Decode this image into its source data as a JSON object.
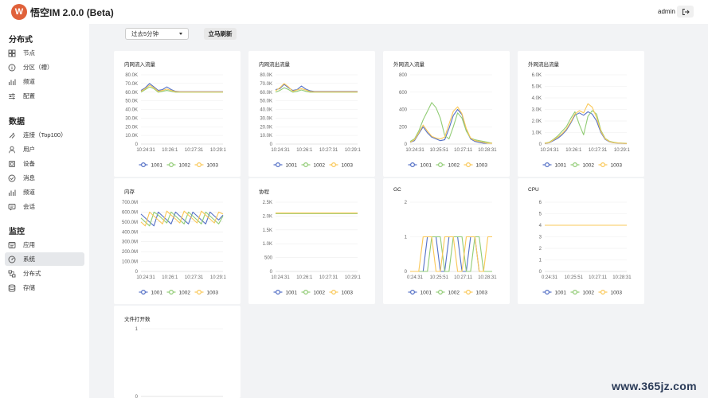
{
  "header": {
    "logo_text": "W",
    "title": "悟空IM 2.0.0 (Beta)",
    "user": "admin",
    "logout_icon": "logout-icon"
  },
  "sidebar": {
    "sections": [
      {
        "title": "分布式",
        "items": [
          {
            "label": "节点",
            "icon": "grid-icon"
          },
          {
            "label": "分区（槽）",
            "icon": "info-circle-icon"
          },
          {
            "label": "频道",
            "icon": "bar-chart-icon"
          },
          {
            "label": "配置",
            "icon": "sliders-icon"
          }
        ]
      },
      {
        "title": "数据",
        "items": [
          {
            "label": "连接（Top100）",
            "icon": "plug-icon"
          },
          {
            "label": "用户",
            "icon": "user-icon"
          },
          {
            "label": "设备",
            "icon": "device-icon"
          },
          {
            "label": "消息",
            "icon": "check-circle-icon"
          },
          {
            "label": "频道",
            "icon": "bar-chart-icon"
          },
          {
            "label": "会话",
            "icon": "chat-icon"
          }
        ]
      },
      {
        "title": "监控",
        "items": [
          {
            "label": "应用",
            "icon": "app-icon"
          },
          {
            "label": "系统",
            "icon": "gauge-icon",
            "active": true
          },
          {
            "label": "分布式",
            "icon": "cluster-icon"
          },
          {
            "label": "存储",
            "icon": "database-icon"
          }
        ]
      }
    ]
  },
  "toolbar": {
    "range_value": "过去5分钟",
    "refresh_label": "立马刷新"
  },
  "colors": {
    "series": [
      "#5470c6",
      "#91cc75",
      "#fac858"
    ]
  },
  "charts": [
    {
      "id": "c1",
      "type": "line",
      "title": "内网流入流量",
      "yticks": [
        "0",
        "10.0K",
        "20.0K",
        "30.0K",
        "40.0K",
        "50.0K",
        "60.0K",
        "70.0K",
        "80.0K"
      ],
      "ylim": [
        0,
        80000
      ],
      "xticks": [
        "10:24:31",
        "10:26:1",
        "10:27:31",
        "10:29:1"
      ],
      "series": [
        {
          "name": "1001",
          "values": [
            62000,
            65000,
            70000,
            66000,
            62000,
            63000,
            66000,
            63000,
            61000,
            60500,
            60500,
            60500,
            60500,
            60500,
            60500,
            60500,
            60500,
            60500,
            60500,
            60500
          ]
        },
        {
          "name": "1002",
          "values": [
            60000,
            63000,
            66000,
            64000,
            60000,
            61000,
            62000,
            61000,
            60000,
            60000,
            60000,
            60000,
            60000,
            60000,
            60000,
            60000,
            60000,
            60000,
            60000,
            60000
          ]
        },
        {
          "name": "1003",
          "values": [
            61000,
            64000,
            68000,
            65000,
            61000,
            62000,
            63500,
            62000,
            60500,
            60200,
            60200,
            60200,
            60200,
            60200,
            60200,
            60200,
            60200,
            60200,
            60200,
            60200
          ]
        }
      ]
    },
    {
      "id": "c2",
      "type": "line",
      "title": "内网流出流量",
      "yticks": [
        "0",
        "10.0K",
        "20.0K",
        "30.0K",
        "40.0K",
        "50.0K",
        "60.0K",
        "70.0K",
        "80.0K"
      ],
      "ylim": [
        0,
        80000
      ],
      "xticks": [
        "10:24:31",
        "10:26:1",
        "10:27:31",
        "10:29:1"
      ],
      "series": [
        {
          "name": "1001",
          "values": [
            63000,
            64000,
            69000,
            65000,
            62000,
            63000,
            67000,
            63500,
            61500,
            60800,
            60800,
            60800,
            60800,
            60800,
            60800,
            60800,
            60800,
            60800,
            60800,
            60800
          ]
        },
        {
          "name": "1002",
          "values": [
            60000,
            62000,
            65000,
            63000,
            60000,
            61000,
            62500,
            61000,
            60000,
            60000,
            60000,
            60000,
            60000,
            60000,
            60000,
            60000,
            60000,
            60000,
            60000,
            60000
          ]
        },
        {
          "name": "1003",
          "values": [
            61500,
            65000,
            70000,
            66000,
            61000,
            62500,
            64000,
            62500,
            60600,
            60300,
            60300,
            60300,
            60300,
            60300,
            60300,
            60300,
            60300,
            60300,
            60300,
            60300
          ]
        }
      ]
    },
    {
      "id": "c3",
      "type": "line",
      "title": "外网流入流量",
      "yticks": [
        "0",
        "200",
        "400",
        "600",
        "800"
      ],
      "ylim": [
        0,
        800
      ],
      "xticks": [
        "10:24:31",
        "10:25:51",
        "10:27:11",
        "10:28:31"
      ],
      "series": [
        {
          "name": "1001",
          "values": [
            20,
            40,
            120,
            200,
            130,
            80,
            60,
            40,
            50,
            180,
            330,
            400,
            340,
            160,
            60,
            30,
            20,
            10,
            10,
            10
          ]
        },
        {
          "name": "1002",
          "values": [
            30,
            60,
            150,
            280,
            380,
            480,
            420,
            300,
            100,
            60,
            200,
            360,
            300,
            150,
            70,
            50,
            40,
            30,
            20,
            10
          ]
        },
        {
          "name": "1003",
          "values": [
            20,
            50,
            130,
            220,
            150,
            90,
            70,
            60,
            80,
            230,
            380,
            430,
            350,
            180,
            70,
            40,
            30,
            20,
            10,
            10
          ]
        }
      ]
    },
    {
      "id": "c4",
      "type": "line",
      "title": "外网流出流量",
      "yticks": [
        "0",
        "1.0K",
        "2.0K",
        "3.0K",
        "4.0K",
        "5.0K",
        "6.0K"
      ],
      "ylim": [
        0,
        6000
      ],
      "xticks": [
        "10:24:31",
        "10:26:1",
        "10:27:31",
        "10:29:1"
      ],
      "series": [
        {
          "name": "1001",
          "values": [
            50,
            100,
            300,
            500,
            800,
            1200,
            1800,
            2500,
            2700,
            2500,
            2800,
            2600,
            2000,
            1000,
            400,
            200,
            100,
            80,
            60,
            50
          ]
        },
        {
          "name": "1002",
          "values": [
            80,
            150,
            400,
            700,
            1100,
            1500,
            2200,
            2800,
            1700,
            800,
            2400,
            2900,
            2600,
            1200,
            500,
            250,
            150,
            100,
            80,
            60
          ]
        },
        {
          "name": "1003",
          "values": [
            60,
            120,
            350,
            600,
            900,
            1300,
            1900,
            2600,
            2900,
            2700,
            3500,
            3200,
            2300,
            1100,
            450,
            220,
            120,
            90,
            70,
            50
          ]
        }
      ]
    },
    {
      "id": "c5",
      "type": "line",
      "title": "内存",
      "yticks": [
        "0",
        "100.0M",
        "200.0M",
        "300.0M",
        "400.0M",
        "500.0M",
        "600.0M",
        "700.0M"
      ],
      "ylim": [
        0,
        700
      ],
      "xticks": [
        "10:24:31",
        "10:26:1",
        "10:27:31",
        "10:29:1"
      ],
      "series": [
        {
          "name": "1001",
          "values": [
            580,
            540,
            500,
            460,
            600,
            560,
            520,
            480,
            600,
            560,
            520,
            480,
            600,
            560,
            520,
            480,
            600,
            560,
            520,
            570
          ]
        },
        {
          "name": "1002",
          "values": [
            540,
            500,
            460,
            600,
            570,
            530,
            490,
            600,
            560,
            520,
            480,
            600,
            560,
            520,
            480,
            600,
            560,
            520,
            480,
            560
          ]
        },
        {
          "name": "1003",
          "values": [
            500,
            460,
            600,
            560,
            520,
            480,
            610,
            570,
            530,
            490,
            610,
            570,
            530,
            490,
            610,
            570,
            530,
            490,
            600,
            580
          ]
        }
      ]
    },
    {
      "id": "c6",
      "type": "line",
      "title": "协程",
      "yticks": [
        "0",
        "500",
        "1.0K",
        "1.5K",
        "2.0K",
        "2.5K"
      ],
      "ylim": [
        0,
        2500
      ],
      "xticks": [
        "10:24:31",
        "10:26:1",
        "10:27:31",
        "10:29:1"
      ],
      "series": [
        {
          "name": "1001",
          "values": [
            2100,
            2100,
            2100,
            2100,
            2100,
            2100,
            2100,
            2100,
            2100,
            2100,
            2100,
            2100,
            2100,
            2100,
            2100,
            2100,
            2100,
            2100,
            2100,
            2100
          ]
        },
        {
          "name": "1002",
          "values": [
            2090,
            2090,
            2090,
            2090,
            2090,
            2090,
            2090,
            2090,
            2090,
            2090,
            2090,
            2090,
            2090,
            2090,
            2090,
            2090,
            2090,
            2090,
            2090,
            2090
          ]
        },
        {
          "name": "1003",
          "values": [
            2110,
            2110,
            2110,
            2110,
            2110,
            2110,
            2110,
            2110,
            2110,
            2110,
            2110,
            2110,
            2110,
            2110,
            2110,
            2110,
            2110,
            2110,
            2110,
            2110
          ]
        }
      ]
    },
    {
      "id": "c7",
      "type": "line",
      "title": "GC",
      "yticks": [
        "0",
        "1",
        "2"
      ],
      "ylim": [
        0,
        2
      ],
      "xticks": [
        "0:24:31",
        "10:25:51",
        "10:27:11",
        "10:28:31"
      ],
      "series": [
        {
          "name": "1001",
          "values": [
            0,
            0,
            0,
            0,
            1,
            1,
            1,
            0,
            0,
            1,
            1,
            1,
            0,
            0,
            1,
            1,
            0,
            0,
            0,
            0
          ]
        },
        {
          "name": "1002",
          "values": [
            0,
            0,
            0,
            0,
            0,
            1,
            1,
            1,
            0,
            0,
            1,
            1,
            1,
            0,
            0,
            1,
            1,
            0,
            0,
            0
          ]
        },
        {
          "name": "1003",
          "values": [
            0,
            0,
            0,
            1,
            1,
            1,
            0,
            0,
            1,
            1,
            1,
            0,
            0,
            1,
            1,
            1,
            0,
            0,
            1,
            1
          ]
        }
      ]
    },
    {
      "id": "c8",
      "type": "line",
      "title": "CPU",
      "yticks": [
        "0",
        "1",
        "2",
        "3",
        "4",
        "5",
        "6"
      ],
      "ylim": [
        0,
        6
      ],
      "xticks": [
        "0:24:31",
        "10:25:51",
        "10:27:11",
        "10:28:31"
      ],
      "series": [
        {
          "name": "1001",
          "values": [
            4,
            4,
            4,
            4,
            4,
            4,
            4,
            4,
            4,
            4,
            4,
            4,
            4,
            4,
            4,
            4,
            4,
            4,
            4,
            4
          ]
        },
        {
          "name": "1002",
          "values": [
            4,
            4,
            4,
            4,
            4,
            4,
            4,
            4,
            4,
            4,
            4,
            4,
            4,
            4,
            4,
            4,
            4,
            4,
            4,
            4
          ]
        },
        {
          "name": "1003",
          "values": [
            4,
            4,
            4,
            4,
            4,
            4,
            4,
            4,
            4,
            4,
            4,
            4,
            4,
            4,
            4,
            4,
            4,
            4,
            4,
            4
          ]
        }
      ]
    },
    {
      "id": "c9",
      "type": "line",
      "title": "文件打开数",
      "yticks": [
        "0",
        "1"
      ],
      "ylim": [
        0,
        1
      ],
      "xticks": [],
      "series": []
    }
  ],
  "legend_names": [
    "1001",
    "1002",
    "1003"
  ],
  "watermark": "www.365jz.com"
}
